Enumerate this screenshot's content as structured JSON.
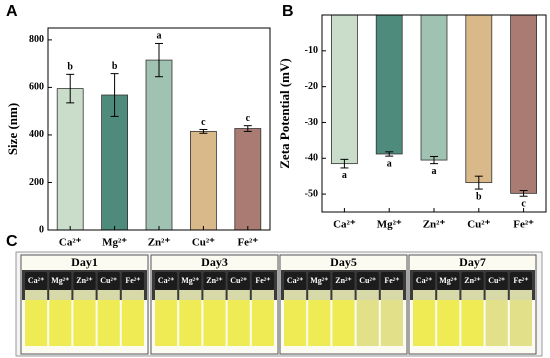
{
  "chart_data": [
    {
      "type": "bar",
      "panel_label": "A",
      "y_label": "Size (nm)",
      "categories": [
        "Ca²⁺",
        "Mg²⁺",
        "Zn²⁺",
        "Cu²⁺",
        "Fe²⁺"
      ],
      "values": [
        595,
        568,
        715,
        415,
        427
      ],
      "errors": [
        60,
        90,
        70,
        8,
        12
      ],
      "significance_labels": [
        "b",
        "b",
        "a",
        "c",
        "c"
      ],
      "colors": [
        "#c9ddca",
        "#4f8b7d",
        "#9fc2b2",
        "#d9b98a",
        "#a97b73"
      ],
      "ylim": [
        0,
        850
      ],
      "yticks": [
        0,
        200,
        400,
        600,
        800
      ]
    },
    {
      "type": "bar",
      "panel_label": "B",
      "y_label": "Zeta Potential (mV)",
      "categories": [
        "Ca²⁺",
        "Mg²⁺",
        "Zn²⁺",
        "Cu²⁺",
        "Fe²⁺"
      ],
      "values": [
        -41.5,
        -38.8,
        -40.5,
        -46.8,
        -49.8
      ],
      "errors": [
        1.2,
        0.6,
        1.0,
        1.8,
        0.8
      ],
      "significance_labels": [
        "a",
        "a",
        "a",
        "b",
        "c"
      ],
      "colors": [
        "#c9ddca",
        "#4f8b7d",
        "#9fc2b2",
        "#d9b98a",
        "#a97b73"
      ],
      "ylim": [
        -55,
        0
      ],
      "yticks": [
        -50,
        -40,
        -30,
        -20,
        -10
      ]
    }
  ],
  "photo_panel": {
    "panel_label": "C",
    "days": [
      "Day1",
      "Day3",
      "Day5",
      "Day7"
    ],
    "vial_labels": [
      "Ca²⁺",
      "Mg²⁺",
      "Zn²⁺",
      "Cu²⁺",
      "Fe²⁺"
    ]
  }
}
